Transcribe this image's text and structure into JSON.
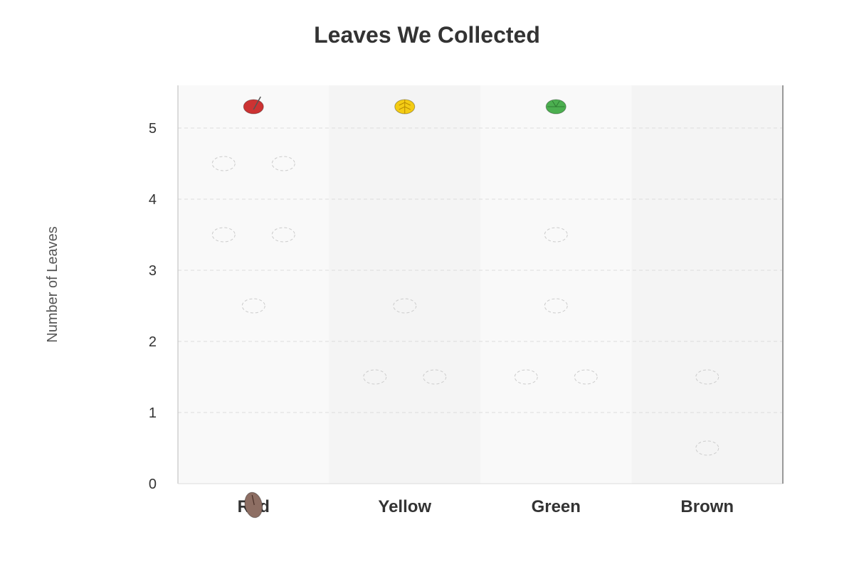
{
  "chart_data": {
    "type": "bar",
    "title": "Leaves We Collected",
    "xlabel": "",
    "ylabel": "Number of Leaves",
    "categories": [
      "Red",
      "Yellow",
      "Green",
      "Brown"
    ],
    "values": [
      5,
      5,
      5,
      0
    ],
    "ylim": [
      0,
      5.6
    ],
    "yticks": [
      0,
      1,
      2,
      3,
      4,
      5
    ],
    "grid": true,
    "mark_style": "leaf icons stacked in columns (pictograph)",
    "colors": {
      "Red": "#cc3333",
      "Yellow": "#f4cc14",
      "Green": "#4caf50",
      "Brown": "#8d6e63"
    }
  }
}
